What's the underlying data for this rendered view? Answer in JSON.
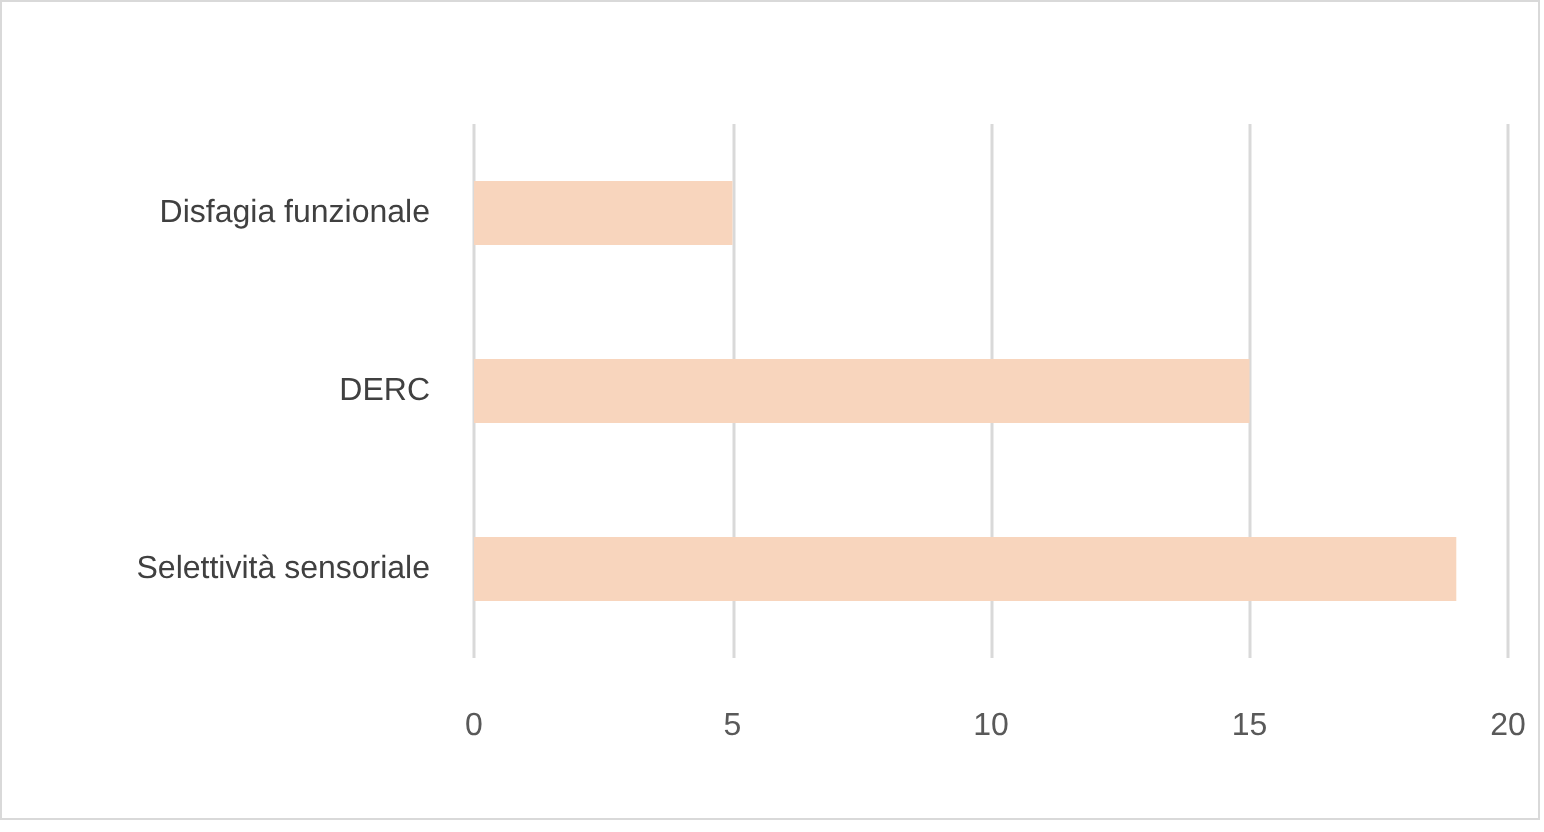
{
  "chart_data": {
    "type": "bar",
    "orientation": "horizontal",
    "categories": [
      "Disfagia funzionale",
      "DERC",
      "Selettività sensoriale"
    ],
    "values": [
      5,
      15,
      19
    ],
    "color": "#f8d5bd",
    "xlim": [
      0,
      20
    ],
    "xticks": [
      0,
      5,
      10,
      15,
      20
    ],
    "grid": "x"
  }
}
